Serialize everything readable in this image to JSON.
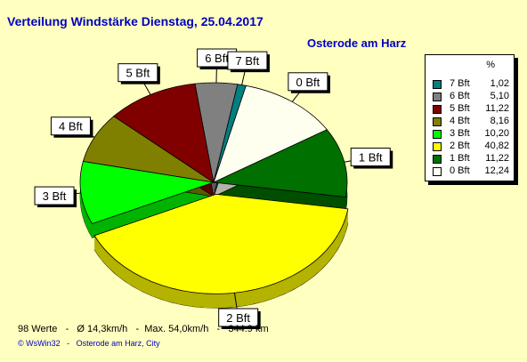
{
  "title": "Verteilung Windstärke  Dienstag, 25.04.2017",
  "location": "Osterode am Harz",
  "legend_header": "%",
  "stats": "98 Werte   -   Ø 14,3km/h   -  Max. 54,0km/h   -   344.9 km",
  "footer": "© WsWin32   -   Osterode am Harz, City",
  "chart_data": {
    "type": "pie",
    "title": "Verteilung Windstärke  Dienstag, 25.04.2017",
    "subtitle": "Osterode am Harz",
    "unit": "%",
    "legend_position": "right",
    "slices": [
      {
        "label": "0 Bft",
        "value": 12.24,
        "display": "12,24",
        "color": "#fffff0"
      },
      {
        "label": "1 Bft",
        "value": 11.22,
        "display": "11,22",
        "color": "#007000"
      },
      {
        "label": "2 Bft",
        "value": 40.82,
        "display": "40,82",
        "color": "#ffff00"
      },
      {
        "label": "3 Bft",
        "value": 10.2,
        "display": "10,20",
        "color": "#00ff00"
      },
      {
        "label": "4 Bft",
        "value": 8.16,
        "display": "8,16",
        "color": "#808000"
      },
      {
        "label": "5 Bft",
        "value": 11.22,
        "display": "11,22",
        "color": "#800000"
      },
      {
        "label": "6 Bft",
        "value": 5.1,
        "display": "5,10",
        "color": "#808080"
      },
      {
        "label": "7 Bft",
        "value": 1.02,
        "display": "1,02",
        "color": "#008080"
      }
    ],
    "legend_order": [
      "7 Bft",
      "6 Bft",
      "5 Bft",
      "4 Bft",
      "3 Bft",
      "2 Bft",
      "1 Bft",
      "0 Bft"
    ]
  }
}
